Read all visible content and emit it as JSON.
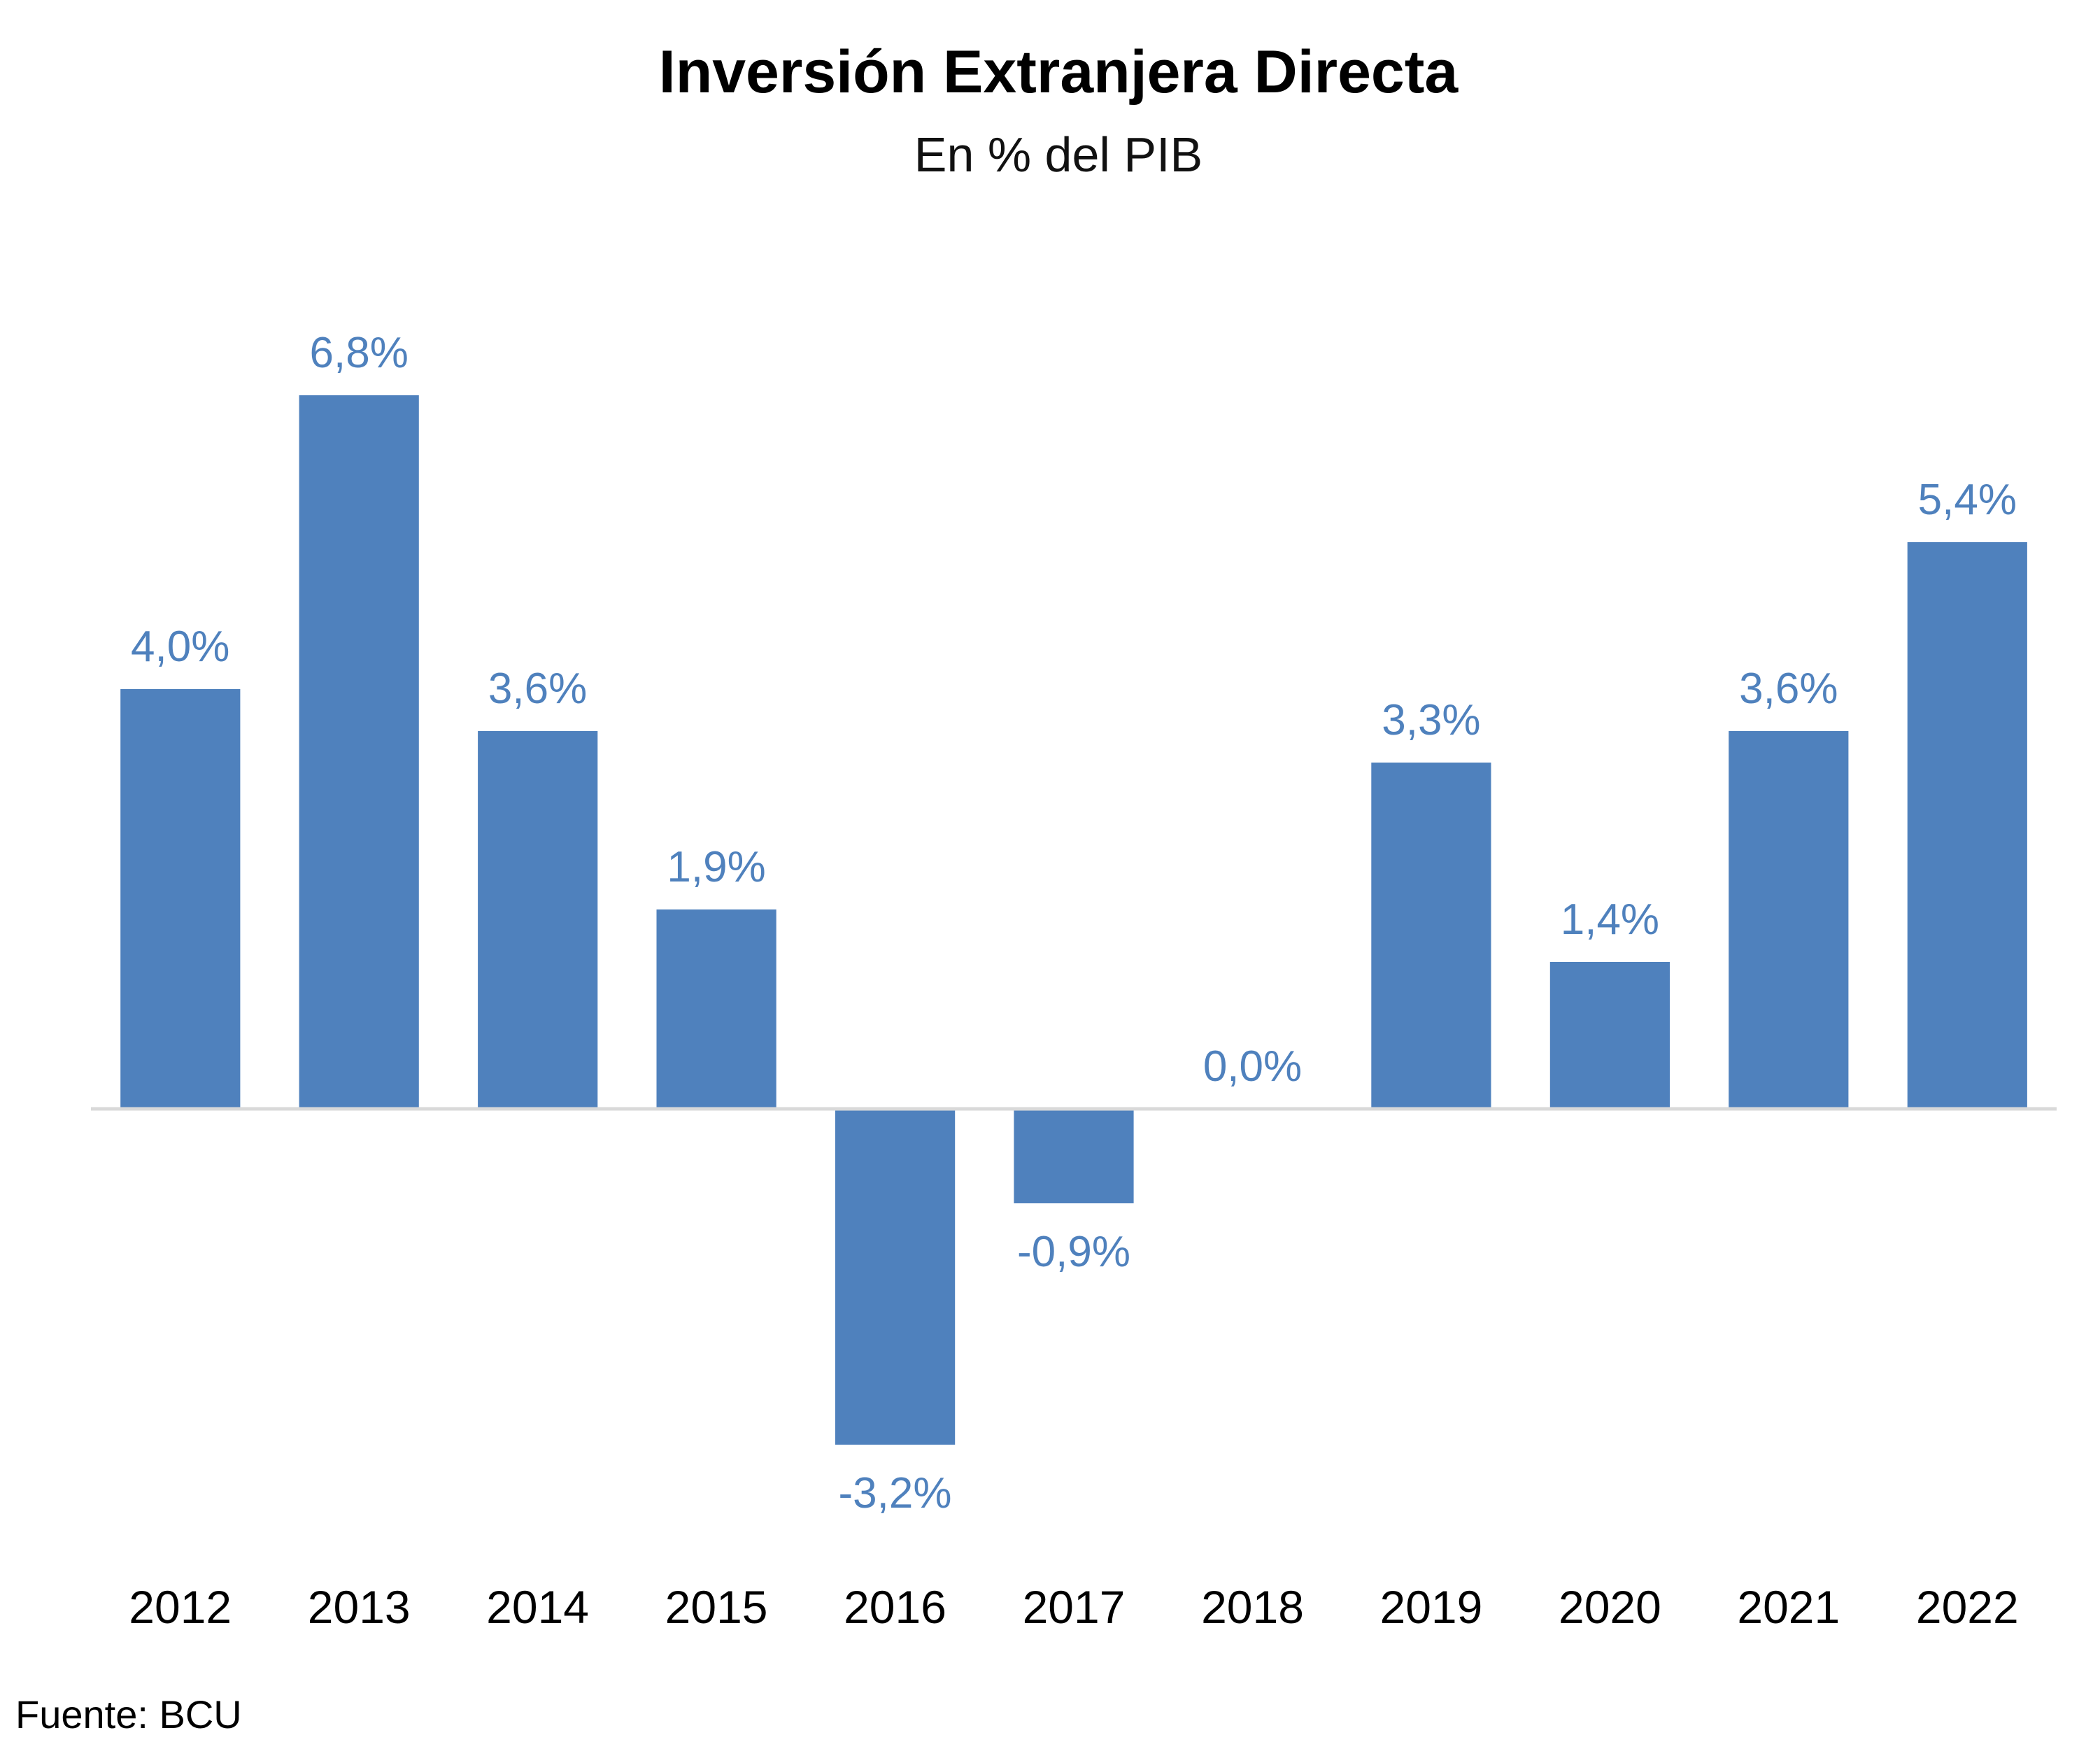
{
  "chart_data": {
    "type": "bar",
    "title": "Inversión Extranjera Directa",
    "subtitle": "En % del PIB",
    "categories": [
      "2012",
      "2013",
      "2014",
      "2015",
      "2016",
      "2017",
      "2018",
      "2019",
      "2020",
      "2021",
      "2022"
    ],
    "values": [
      4.0,
      6.8,
      3.6,
      1.9,
      -3.2,
      -0.9,
      0.0,
      3.3,
      1.4,
      3.6,
      5.4
    ],
    "data_labels": [
      "4,0%",
      "6,8%",
      "3,6%",
      "1,9%",
      "-3,2%",
      "-0,9%",
      "0,0%",
      "3,3%",
      "1,4%",
      "3,6%",
      "5,4%"
    ],
    "xlabel": "",
    "ylabel": "",
    "ylim": [
      -3.2,
      6.8
    ],
    "grid": false,
    "legend": "none",
    "bar_color": "#4F81BD",
    "label_color": "#4F81BD",
    "axis_color": "#D9D9D9"
  },
  "footer": {
    "source": "Fuente: BCU"
  }
}
